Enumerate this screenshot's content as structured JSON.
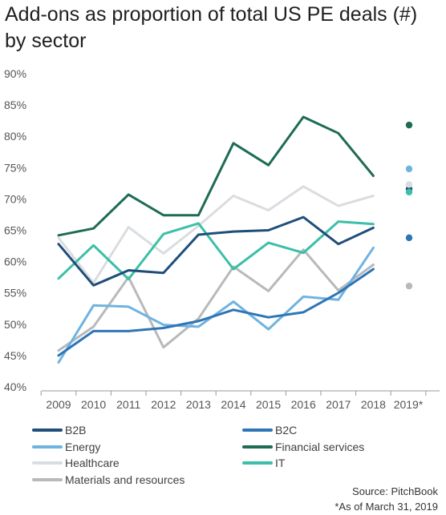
{
  "title": "Add-ons as proportion of total US PE deals (#) by sector",
  "source": "Source: PitchBook",
  "footnote": "*As of March 31, 2019",
  "chart_data": {
    "type": "line",
    "x": [
      "2009",
      "2010",
      "2011",
      "2012",
      "2013",
      "2014",
      "2015",
      "2016",
      "2017",
      "2018",
      "2019*"
    ],
    "y_ticks": [
      "90%",
      "85%",
      "80%",
      "75%",
      "70%",
      "65%",
      "60%",
      "55%",
      "50%",
      "45%",
      "40%"
    ],
    "ylim": [
      40,
      90
    ],
    "y_unit": "%",
    "grid": false,
    "legend_position": "bottom",
    "note": "2019* values drawn as single dots",
    "series": [
      {
        "name": "B2B",
        "color": "#1f4e79",
        "values": [
          62.8,
          56.2,
          58.6,
          58.2,
          64.3,
          64.8,
          65.0,
          67.1,
          62.8,
          65.4,
          71.6
        ]
      },
      {
        "name": "B2C",
        "color": "#2e75b6",
        "values": [
          45.0,
          48.9,
          48.9,
          49.4,
          50.5,
          52.3,
          51.1,
          51.9,
          55.0,
          58.8,
          63.8
        ]
      },
      {
        "name": "Energy",
        "color": "#6fb3e0",
        "values": [
          43.9,
          53.0,
          52.8,
          49.9,
          49.6,
          53.6,
          49.2,
          54.4,
          53.9,
          62.2,
          74.8
        ]
      },
      {
        "name": "Financial services",
        "color": "#1e6b56",
        "values": [
          64.2,
          65.3,
          70.7,
          67.4,
          67.4,
          78.9,
          75.4,
          83.1,
          80.5,
          73.7,
          81.8
        ]
      },
      {
        "name": "Healthcare",
        "color": "#dadde0",
        "values": [
          63.8,
          56.6,
          65.5,
          61.3,
          65.7,
          70.5,
          68.2,
          72.0,
          68.9,
          70.5,
          72.3
        ]
      },
      {
        "name": "IT",
        "color": "#3bbfa8",
        "values": [
          57.3,
          62.6,
          57.2,
          64.4,
          66.1,
          58.8,
          63.0,
          61.4,
          66.4,
          66.0,
          71.1
        ]
      },
      {
        "name": "Materials and resources",
        "color": "#b7b9bb",
        "values": [
          45.8,
          49.6,
          57.5,
          46.3,
          50.9,
          59.2,
          55.3,
          61.9,
          55.4,
          59.5,
          56.1
        ]
      }
    ]
  }
}
